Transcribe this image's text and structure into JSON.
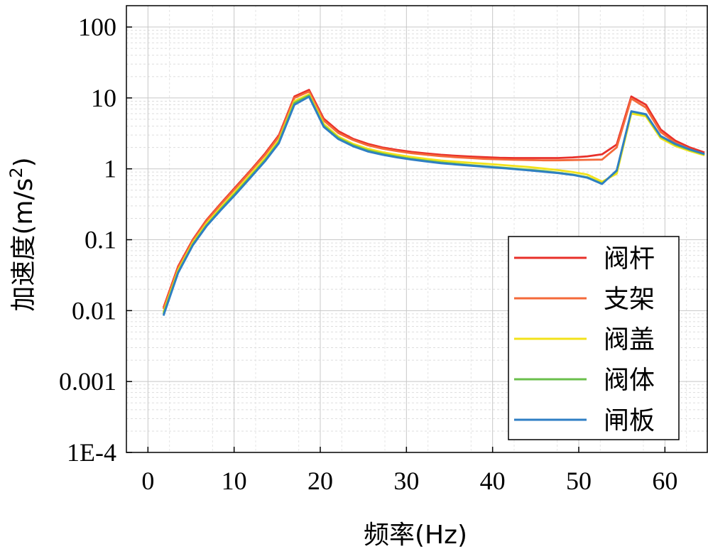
{
  "chart_data": {
    "type": "line",
    "xlabel": "频率(Hz)",
    "ylabel_main": "加速度(m/s",
    "ylabel_sup": "2",
    "ylabel_close": ")",
    "xlim": [
      -2.5,
      65
    ],
    "ylim": [
      0.0001,
      200
    ],
    "yscale": "log",
    "grid": true,
    "legend_position": "bottom-right",
    "xticks": [
      0,
      10,
      20,
      30,
      40,
      50,
      60
    ],
    "xtick_labels": [
      "0",
      "10",
      "20",
      "30",
      "40",
      "50",
      "60"
    ],
    "yticks": [
      0.0001,
      0.001,
      0.01,
      0.1,
      1,
      10,
      100
    ],
    "ytick_labels": [
      "1E-4",
      "0.001",
      "0.01",
      "0.1",
      "1",
      "10",
      "100"
    ],
    "x": [
      1.8,
      3.5,
      5.2,
      6.8,
      8.5,
      10.2,
      11.9,
      13.6,
      15.2,
      17.0,
      18.7,
      20.4,
      22.1,
      23.8,
      25.5,
      27.2,
      28.9,
      30.6,
      32.3,
      34.0,
      35.7,
      37.4,
      39.1,
      40.8,
      42.5,
      44.2,
      45.9,
      47.6,
      49.3,
      51.0,
      52.7,
      54.4,
      56.1,
      57.8,
      59.5,
      61.2,
      62.9,
      64.6
    ],
    "series": [
      {
        "name": "阀杆",
        "color": "#e8302a",
        "values": [
          0.011,
          0.042,
          0.1,
          0.19,
          0.33,
          0.56,
          0.95,
          1.65,
          3.0,
          10.5,
          13.0,
          5.1,
          3.4,
          2.65,
          2.25,
          2.0,
          1.85,
          1.73,
          1.65,
          1.58,
          1.53,
          1.49,
          1.46,
          1.43,
          1.42,
          1.42,
          1.42,
          1.42,
          1.45,
          1.5,
          1.6,
          2.2,
          10.5,
          8.0,
          3.6,
          2.5,
          2.0,
          1.7
        ]
      },
      {
        "name": "支架",
        "color": "#f4693a",
        "values": [
          0.0105,
          0.04,
          0.097,
          0.185,
          0.32,
          0.54,
          0.92,
          1.58,
          2.85,
          10.0,
          12.3,
          4.8,
          3.2,
          2.55,
          2.15,
          1.93,
          1.78,
          1.66,
          1.58,
          1.51,
          1.46,
          1.42,
          1.38,
          1.36,
          1.34,
          1.33,
          1.32,
          1.32,
          1.33,
          1.34,
          1.35,
          2.0,
          9.8,
          7.3,
          3.3,
          2.35,
          1.9,
          1.62
        ]
      },
      {
        "name": "阀盖",
        "color": "#f2e21a",
        "values": [
          0.0095,
          0.037,
          0.09,
          0.17,
          0.29,
          0.49,
          0.83,
          1.42,
          2.55,
          9.0,
          11.3,
          4.3,
          2.85,
          2.25,
          1.92,
          1.72,
          1.58,
          1.47,
          1.38,
          1.31,
          1.26,
          1.22,
          1.18,
          1.14,
          1.1,
          1.06,
          1.01,
          0.96,
          0.9,
          0.83,
          0.66,
          0.85,
          6.0,
          5.5,
          2.7,
          2.1,
          1.78,
          1.55
        ]
      },
      {
        "name": "阀体",
        "color": "#6abf4b",
        "values": [
          0.009,
          0.035,
          0.086,
          0.16,
          0.275,
          0.46,
          0.78,
          1.33,
          2.4,
          8.5,
          10.8,
          4.05,
          2.72,
          2.15,
          1.82,
          1.63,
          1.49,
          1.38,
          1.3,
          1.23,
          1.18,
          1.13,
          1.09,
          1.05,
          1.01,
          0.97,
          0.93,
          0.88,
          0.83,
          0.76,
          0.62,
          0.93,
          6.4,
          5.8,
          2.85,
          2.2,
          1.85,
          1.6
        ]
      },
      {
        "name": "闸板",
        "color": "#2e7ec4",
        "values": [
          0.0085,
          0.034,
          0.083,
          0.155,
          0.265,
          0.44,
          0.75,
          1.28,
          2.3,
          8.0,
          10.4,
          3.9,
          2.62,
          2.08,
          1.76,
          1.58,
          1.45,
          1.35,
          1.27,
          1.2,
          1.15,
          1.11,
          1.07,
          1.03,
          0.99,
          0.95,
          0.91,
          0.87,
          0.82,
          0.75,
          0.61,
          0.95,
          6.5,
          5.9,
          2.9,
          2.25,
          1.88,
          1.62
        ]
      }
    ]
  }
}
